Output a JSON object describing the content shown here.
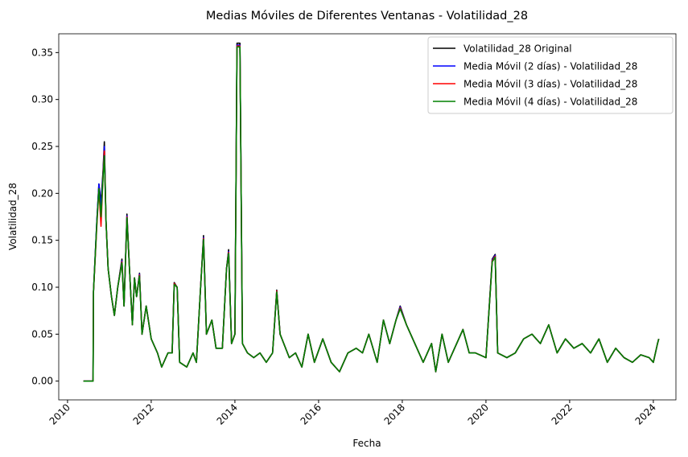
{
  "chart_data": {
    "type": "line",
    "title": "Medias Móviles de Diferentes Ventanas - Volatilidad_28",
    "xlabel": "Fecha",
    "ylabel": "Volatilidad_28",
    "x": [
      2010.38,
      2010.61,
      2010.62,
      2010.7,
      2010.75,
      2010.8,
      2010.85,
      2010.88,
      2010.92,
      2010.97,
      2011.05,
      2011.12,
      2011.2,
      2011.3,
      2011.35,
      2011.42,
      2011.48,
      2011.55,
      2011.6,
      2011.65,
      2011.72,
      2011.78,
      2011.88,
      2012.0,
      2012.15,
      2012.25,
      2012.4,
      2012.5,
      2012.55,
      2012.62,
      2012.68,
      2012.85,
      2013.0,
      2013.08,
      2013.18,
      2013.25,
      2013.32,
      2013.45,
      2013.55,
      2013.7,
      2013.8,
      2013.85,
      2013.92,
      2014.0,
      2014.05,
      2014.12,
      2014.18,
      2014.3,
      2014.45,
      2014.6,
      2014.75,
      2014.9,
      2015.0,
      2015.08,
      2015.3,
      2015.45,
      2015.6,
      2015.75,
      2015.9,
      2016.1,
      2016.3,
      2016.5,
      2016.7,
      2016.9,
      2017.05,
      2017.2,
      2017.4,
      2017.55,
      2017.7,
      2017.85,
      2017.95,
      2018.1,
      2018.3,
      2018.5,
      2018.7,
      2018.8,
      2018.95,
      2019.1,
      2019.3,
      2019.45,
      2019.6,
      2019.75,
      2020.0,
      2020.15,
      2020.22,
      2020.28,
      2020.5,
      2020.7,
      2020.9,
      2021.1,
      2021.3,
      2021.5,
      2021.7,
      2021.9,
      2022.1,
      2022.3,
      2022.5,
      2022.7,
      2022.9,
      2023.1,
      2023.3,
      2023.5,
      2023.7,
      2023.9,
      2024.0,
      2024.1,
      2024.13
    ],
    "series": [
      {
        "name": "Volatilidad_28 Original",
        "color": "#000000",
        "values": [
          0,
          0,
          0.095,
          0.17,
          0.21,
          0.19,
          0.225,
          0.255,
          0.17,
          0.12,
          0.09,
          0.07,
          0.1,
          0.13,
          0.08,
          0.178,
          0.12,
          0.06,
          0.11,
          0.09,
          0.115,
          0.05,
          0.08,
          0.045,
          0.03,
          0.015,
          0.03,
          0.03,
          0.105,
          0.1,
          0.02,
          0.015,
          0.03,
          0.02,
          0.1,
          0.155,
          0.05,
          0.065,
          0.035,
          0.035,
          0.12,
          0.14,
          0.04,
          0.05,
          0.36,
          0.36,
          0.04,
          0.03,
          0.025,
          0.03,
          0.02,
          0.03,
          0.097,
          0.05,
          0.025,
          0.03,
          0.015,
          0.05,
          0.02,
          0.045,
          0.02,
          0.01,
          0.03,
          0.035,
          0.03,
          0.05,
          0.02,
          0.065,
          0.04,
          0.065,
          0.08,
          0.06,
          0.04,
          0.02,
          0.04,
          0.01,
          0.05,
          0.02,
          0.04,
          0.055,
          0.03,
          0.03,
          0.025,
          0.13,
          0.135,
          0.03,
          0.025,
          0.03,
          0.045,
          0.05,
          0.04,
          0.06,
          0.03,
          0.045,
          0.035,
          0.04,
          0.03,
          0.045,
          0.02,
          0.035,
          0.025,
          0.02,
          0.028,
          0.025,
          0.02,
          0.04,
          0.045
        ]
      },
      {
        "name": "Media Móvil (2 días) - Volatilidad_28",
        "color": "#0000ff",
        "values": [
          0,
          0,
          0.095,
          0.17,
          0.21,
          0.185,
          0.222,
          0.25,
          0.17,
          0.12,
          0.09,
          0.07,
          0.1,
          0.128,
          0.08,
          0.176,
          0.12,
          0.06,
          0.11,
          0.09,
          0.114,
          0.05,
          0.08,
          0.045,
          0.03,
          0.015,
          0.03,
          0.03,
          0.104,
          0.1,
          0.02,
          0.015,
          0.03,
          0.02,
          0.1,
          0.153,
          0.05,
          0.065,
          0.035,
          0.035,
          0.12,
          0.138,
          0.04,
          0.05,
          0.358,
          0.358,
          0.04,
          0.03,
          0.025,
          0.03,
          0.02,
          0.03,
          0.096,
          0.05,
          0.025,
          0.03,
          0.015,
          0.05,
          0.02,
          0.045,
          0.02,
          0.01,
          0.03,
          0.035,
          0.03,
          0.05,
          0.02,
          0.065,
          0.04,
          0.065,
          0.079,
          0.06,
          0.04,
          0.02,
          0.04,
          0.01,
          0.05,
          0.02,
          0.04,
          0.055,
          0.03,
          0.03,
          0.025,
          0.129,
          0.134,
          0.03,
          0.025,
          0.03,
          0.045,
          0.05,
          0.04,
          0.06,
          0.03,
          0.045,
          0.035,
          0.04,
          0.03,
          0.045,
          0.02,
          0.035,
          0.025,
          0.02,
          0.028,
          0.025,
          0.02,
          0.04,
          0.045
        ]
      },
      {
        "name": "Media Móvil (3 días) - Volatilidad_28",
        "color": "#ff0000",
        "values": [
          0,
          0,
          0.095,
          0.165,
          0.205,
          0.165,
          0.22,
          0.245,
          0.17,
          0.12,
          0.09,
          0.07,
          0.1,
          0.127,
          0.08,
          0.175,
          0.12,
          0.06,
          0.11,
          0.09,
          0.113,
          0.05,
          0.08,
          0.045,
          0.03,
          0.015,
          0.03,
          0.03,
          0.104,
          0.1,
          0.02,
          0.015,
          0.03,
          0.02,
          0.1,
          0.152,
          0.05,
          0.065,
          0.035,
          0.035,
          0.12,
          0.137,
          0.04,
          0.05,
          0.357,
          0.357,
          0.04,
          0.03,
          0.025,
          0.03,
          0.02,
          0.03,
          0.096,
          0.05,
          0.025,
          0.03,
          0.015,
          0.05,
          0.02,
          0.045,
          0.02,
          0.01,
          0.03,
          0.035,
          0.03,
          0.05,
          0.02,
          0.065,
          0.04,
          0.065,
          0.078,
          0.06,
          0.04,
          0.02,
          0.04,
          0.01,
          0.05,
          0.02,
          0.04,
          0.055,
          0.03,
          0.03,
          0.025,
          0.128,
          0.133,
          0.03,
          0.025,
          0.03,
          0.045,
          0.05,
          0.04,
          0.06,
          0.03,
          0.045,
          0.035,
          0.04,
          0.03,
          0.045,
          0.02,
          0.035,
          0.025,
          0.02,
          0.028,
          0.025,
          0.02,
          0.04,
          0.045
        ]
      },
      {
        "name": "Media Móvil (4 días) - Volatilidad_28",
        "color": "#008000",
        "values": [
          0,
          0,
          0.095,
          0.168,
          0.205,
          0.175,
          0.218,
          0.24,
          0.17,
          0.12,
          0.09,
          0.07,
          0.1,
          0.126,
          0.08,
          0.174,
          0.12,
          0.06,
          0.11,
          0.09,
          0.112,
          0.05,
          0.08,
          0.045,
          0.03,
          0.015,
          0.03,
          0.03,
          0.103,
          0.1,
          0.02,
          0.015,
          0.03,
          0.02,
          0.1,
          0.151,
          0.05,
          0.065,
          0.035,
          0.035,
          0.12,
          0.136,
          0.04,
          0.05,
          0.356,
          0.356,
          0.04,
          0.03,
          0.025,
          0.03,
          0.02,
          0.03,
          0.095,
          0.05,
          0.025,
          0.03,
          0.015,
          0.05,
          0.02,
          0.045,
          0.02,
          0.01,
          0.03,
          0.035,
          0.03,
          0.05,
          0.02,
          0.065,
          0.04,
          0.065,
          0.077,
          0.06,
          0.04,
          0.02,
          0.04,
          0.01,
          0.05,
          0.02,
          0.04,
          0.055,
          0.03,
          0.03,
          0.025,
          0.127,
          0.132,
          0.03,
          0.025,
          0.03,
          0.045,
          0.05,
          0.04,
          0.06,
          0.03,
          0.045,
          0.035,
          0.04,
          0.03,
          0.045,
          0.02,
          0.035,
          0.025,
          0.02,
          0.028,
          0.025,
          0.02,
          0.04,
          0.045
        ]
      }
    ],
    "xlim": [
      2009.79,
      2024.54
    ],
    "xticks": [
      2010,
      2012,
      2014,
      2016,
      2018,
      2020,
      2022,
      2024
    ],
    "ylim": [
      -0.02,
      0.37
    ],
    "yticks": [
      {
        "value": 0,
        "label": "0.00"
      },
      {
        "value": 0.05,
        "label": "0.05"
      },
      {
        "value": 0.1,
        "label": "0.10"
      },
      {
        "value": 0.15,
        "label": "0.15"
      },
      {
        "value": 0.2,
        "label": "0.20"
      },
      {
        "value": 0.25,
        "label": "0.25"
      },
      {
        "value": 0.3,
        "label": "0.30"
      },
      {
        "value": 0.35,
        "label": "0.35"
      }
    ],
    "legend": "upper right"
  }
}
